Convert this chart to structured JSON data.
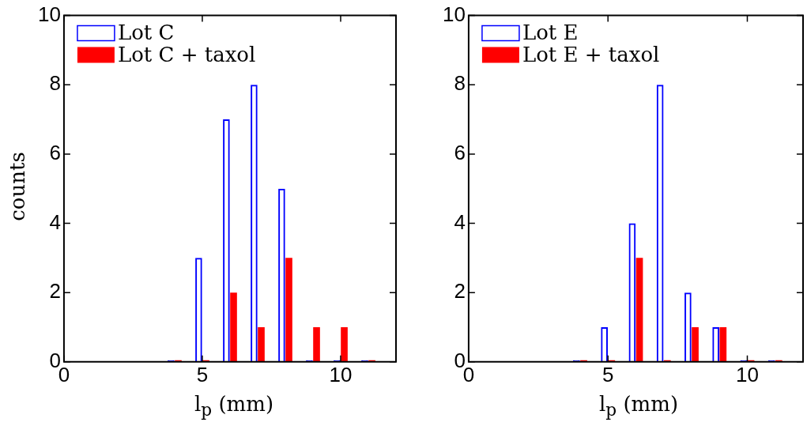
{
  "chart_data": [
    {
      "type": "bar",
      "ylabel": "counts",
      "xlabel": "l$_{p}$ (mm)",
      "xlim": [
        0,
        12
      ],
      "xticks": [
        0,
        5,
        10
      ],
      "ylim": [
        0,
        10
      ],
      "yticks": [
        0,
        2,
        4,
        6,
        8,
        10
      ],
      "grid": false,
      "legend": "top left",
      "x": [
        4,
        5,
        6,
        7,
        8,
        9,
        10,
        11
      ],
      "series": [
        {
          "name": "Lot C",
          "color": "#0000ff",
          "values": [
            0,
            3,
            7,
            8,
            5,
            0,
            0,
            0
          ]
        },
        {
          "name": "Lot C + taxol",
          "color": "#ff0000",
          "values": [
            0,
            0,
            2,
            1,
            3,
            1,
            1,
            0
          ]
        }
      ]
    },
    {
      "type": "bar",
      "xlabel": "l$_{p}$ (mm)",
      "xlim": [
        0,
        12
      ],
      "xticks": [
        0,
        5,
        10
      ],
      "ylim": [
        0,
        10
      ],
      "yticks": [
        0,
        2,
        4,
        6,
        8,
        10
      ],
      "grid": false,
      "legend": "top left",
      "x": [
        4,
        5,
        6,
        7,
        8,
        9,
        10,
        11
      ],
      "series": [
        {
          "name": "Lot E",
          "color": "#0000ff",
          "values": [
            0,
            1,
            4,
            8,
            2,
            1,
            0,
            0
          ]
        },
        {
          "name": "Lot E + taxol",
          "color": "#ff0000",
          "values": [
            0,
            0,
            3,
            0,
            1,
            1,
            0,
            0
          ]
        }
      ]
    }
  ]
}
